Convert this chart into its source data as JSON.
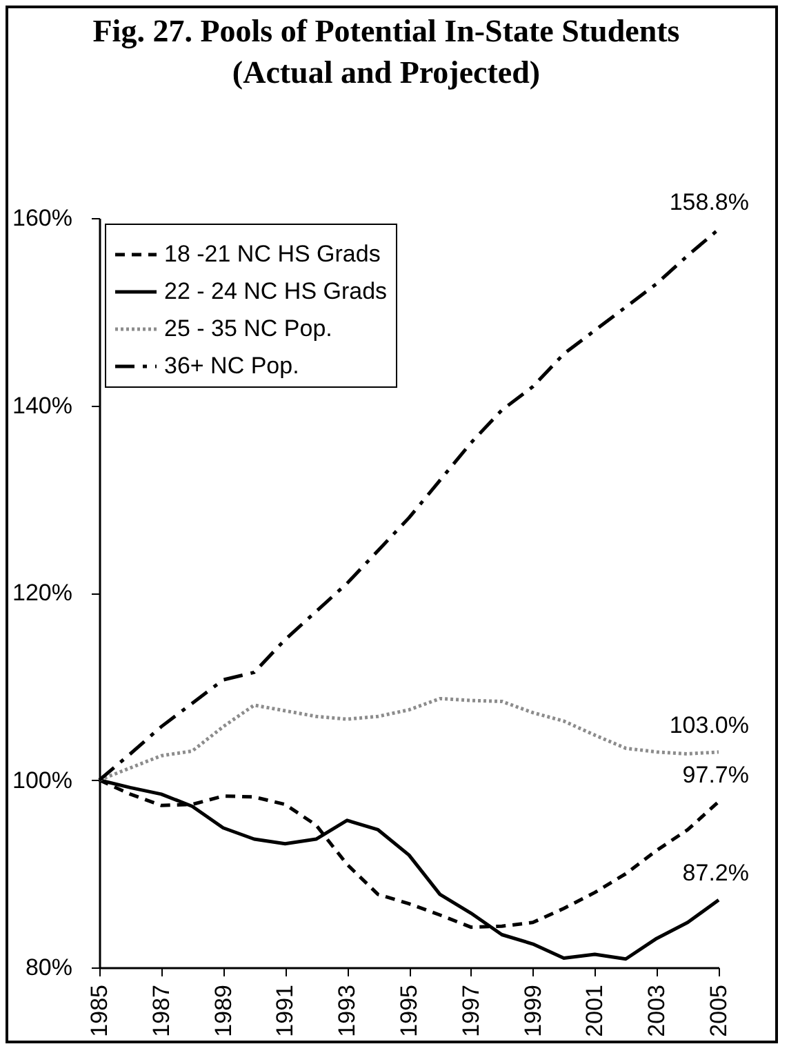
{
  "chart_data": {
    "type": "line",
    "title": "Fig. 27.  Pools of Potential In-State Students (Actual and Projected)",
    "x": [
      1985,
      1986,
      1987,
      1988,
      1989,
      1990,
      1991,
      1992,
      1993,
      1994,
      1995,
      1996,
      1997,
      1998,
      1999,
      2000,
      2001,
      2002,
      2003,
      2004,
      2005
    ],
    "xlim": [
      1985,
      2005
    ],
    "xticks": [
      1985,
      1987,
      1989,
      1991,
      1993,
      1995,
      1997,
      1999,
      2001,
      2003,
      2005
    ],
    "ylim": [
      80,
      160
    ],
    "yticks": [
      {
        "value": 80,
        "label": "80%"
      },
      {
        "value": 100,
        "label": "100%"
      },
      {
        "value": 120,
        "label": "120%"
      },
      {
        "value": 140,
        "label": "140%"
      },
      {
        "value": 160,
        "label": "160%"
      }
    ],
    "grid": false,
    "legend": "top left",
    "marker": "none",
    "series": [
      {
        "name": "18 -21 NC HS Grads",
        "color": "#000000",
        "line_style": "dashed",
        "values": [
          100,
          98.5,
          97.3,
          97.4,
          98.3,
          98.2,
          97.4,
          95.2,
          91.0,
          87.8,
          86.8,
          85.6,
          84.3,
          84.4,
          84.8,
          86.3,
          88.0,
          90.0,
          92.5,
          94.7,
          97.7
        ],
        "value_labels": [
          null,
          null,
          null,
          null,
          null,
          null,
          null,
          null,
          null,
          null,
          null,
          null,
          null,
          null,
          null,
          null,
          null,
          null,
          null,
          null,
          "97.7%"
        ]
      },
      {
        "name": "22 - 24 NC HS Grads",
        "color": "#000000",
        "line_style": "solid",
        "values": [
          100,
          99.2,
          98.5,
          97.2,
          94.9,
          93.7,
          93.2,
          93.7,
          95.7,
          94.7,
          92.0,
          87.8,
          85.8,
          83.5,
          82.5,
          81.0,
          81.4,
          80.9,
          83.1,
          84.8,
          87.2
        ],
        "value_labels": [
          null,
          null,
          null,
          null,
          null,
          null,
          null,
          null,
          null,
          null,
          null,
          null,
          null,
          null,
          null,
          null,
          null,
          null,
          null,
          null,
          "87.2%"
        ]
      },
      {
        "name": "25 - 35 NC Pop.",
        "color": "#8c8c8c",
        "line_style": "dotted",
        "values": [
          100,
          101.3,
          102.6,
          103.1,
          105.7,
          108.0,
          107.4,
          106.8,
          106.5,
          106.8,
          107.5,
          108.7,
          108.5,
          108.4,
          107.2,
          106.3,
          104.8,
          103.4,
          103.0,
          102.8,
          103.0
        ],
        "value_labels": [
          null,
          null,
          null,
          null,
          null,
          null,
          null,
          null,
          null,
          null,
          null,
          null,
          null,
          null,
          null,
          null,
          null,
          null,
          null,
          null,
          "103.0%"
        ]
      },
      {
        "name": "36+ NC Pop.",
        "color": "#000000",
        "line_style": "dashdot",
        "values": [
          100,
          102.8,
          105.7,
          108.2,
          110.7,
          111.5,
          115,
          118,
          121,
          124.5,
          128,
          132,
          136,
          139.5,
          142,
          145.5,
          148,
          150.5,
          153,
          156,
          158.8
        ],
        "value_labels": [
          null,
          null,
          null,
          null,
          null,
          null,
          null,
          null,
          null,
          null,
          null,
          null,
          null,
          null,
          null,
          null,
          null,
          null,
          null,
          null,
          "158.8%"
        ]
      }
    ]
  }
}
